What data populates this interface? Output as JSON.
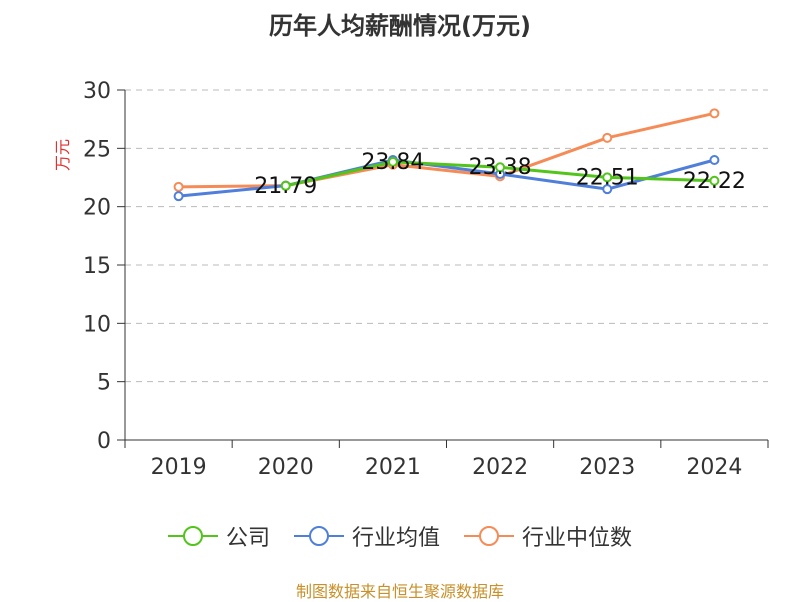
{
  "title": "历年人均薪酬情况(万元)",
  "source": "制图数据来自恒生聚源数据库",
  "colors": {
    "company": "#52c41a",
    "industry_avg": "#4f7fda",
    "industry_median": "#f58c58",
    "ylabel": "#e03030",
    "source": "#c8902a",
    "axis": "#333333",
    "grid": "#bbbbbb"
  },
  "chart_data": {
    "type": "line",
    "title": "历年人均薪酬情况(万元)",
    "ylabel": "万元",
    "xlabel": "",
    "categories": [
      "2019",
      "2020",
      "2021",
      "2022",
      "2023",
      "2024"
    ],
    "ylim": [
      0,
      30
    ],
    "yticks": [
      0,
      5,
      10,
      15,
      20,
      25,
      30
    ],
    "grid": "horizontal dashed",
    "legend_position": "bottom",
    "series": [
      {
        "name": "公司",
        "key": "company",
        "values": [
          null,
          21.79,
          23.84,
          23.38,
          22.51,
          22.22
        ]
      },
      {
        "name": "行业均值",
        "key": "industry_avg",
        "values": [
          20.9,
          21.8,
          24.0,
          22.8,
          21.5,
          24.0
        ]
      },
      {
        "name": "行业中位数",
        "key": "industry_median",
        "values": [
          21.7,
          21.8,
          23.6,
          22.6,
          25.9,
          28.0
        ]
      }
    ],
    "data_labels": [
      {
        "category": "2020",
        "text": "21.79"
      },
      {
        "category": "2021",
        "text": "23.84"
      },
      {
        "category": "2022",
        "text": "23.38"
      },
      {
        "category": "2023",
        "text": "22.51"
      },
      {
        "category": "2024",
        "text": "22.22"
      }
    ]
  }
}
